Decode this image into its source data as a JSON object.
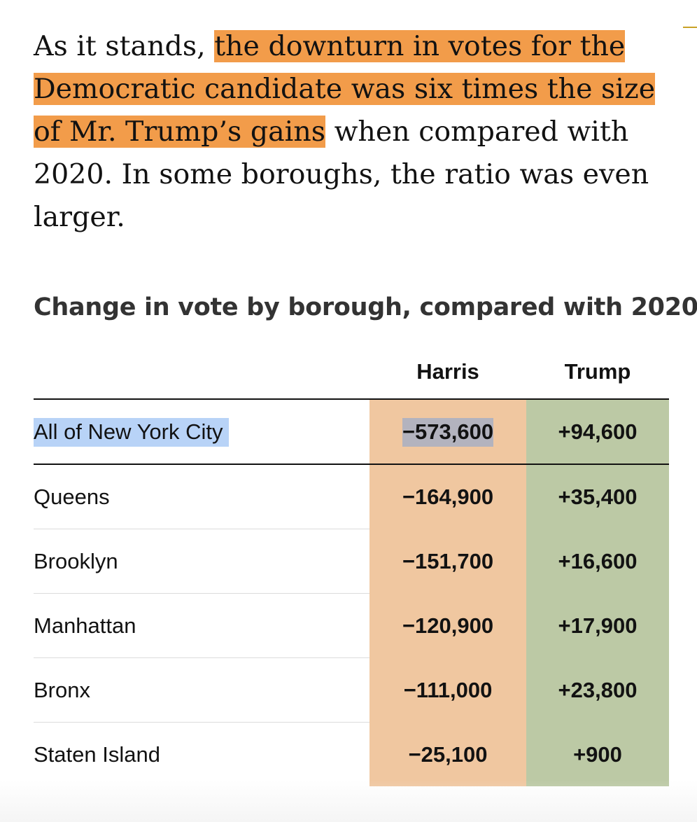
{
  "intro": {
    "pre": "As it stands, ",
    "highlight": "the downturn in votes for the Democratic candidate was six times the size of Mr. Trump’s gains",
    "post": " when compared with 2020. In some boroughs, the ratio was even larger."
  },
  "colors": {
    "highlight": "#f29c4a",
    "harris_cell": "#f0c7a0",
    "trump_cell": "#bcc9a5",
    "selection": "#b8d3f7"
  },
  "chart_data": {
    "type": "table",
    "title": "Change in vote by borough, compared with 2020",
    "columns": [
      "",
      "Harris",
      "Trump"
    ],
    "rows": [
      {
        "label": "All of New York City",
        "harris": "−573,600",
        "trump": "+94,600"
      },
      {
        "label": "Queens",
        "harris": "−164,900",
        "trump": "+35,400"
      },
      {
        "label": "Brooklyn",
        "harris": "−151,700",
        "trump": "+16,600"
      },
      {
        "label": "Manhattan",
        "harris": "−120,900",
        "trump": "+17,900"
      },
      {
        "label": "Bronx",
        "harris": "−111,000",
        "trump": "+23,800"
      },
      {
        "label": "Staten Island",
        "harris": "−25,100",
        "trump": "+900"
      }
    ]
  }
}
